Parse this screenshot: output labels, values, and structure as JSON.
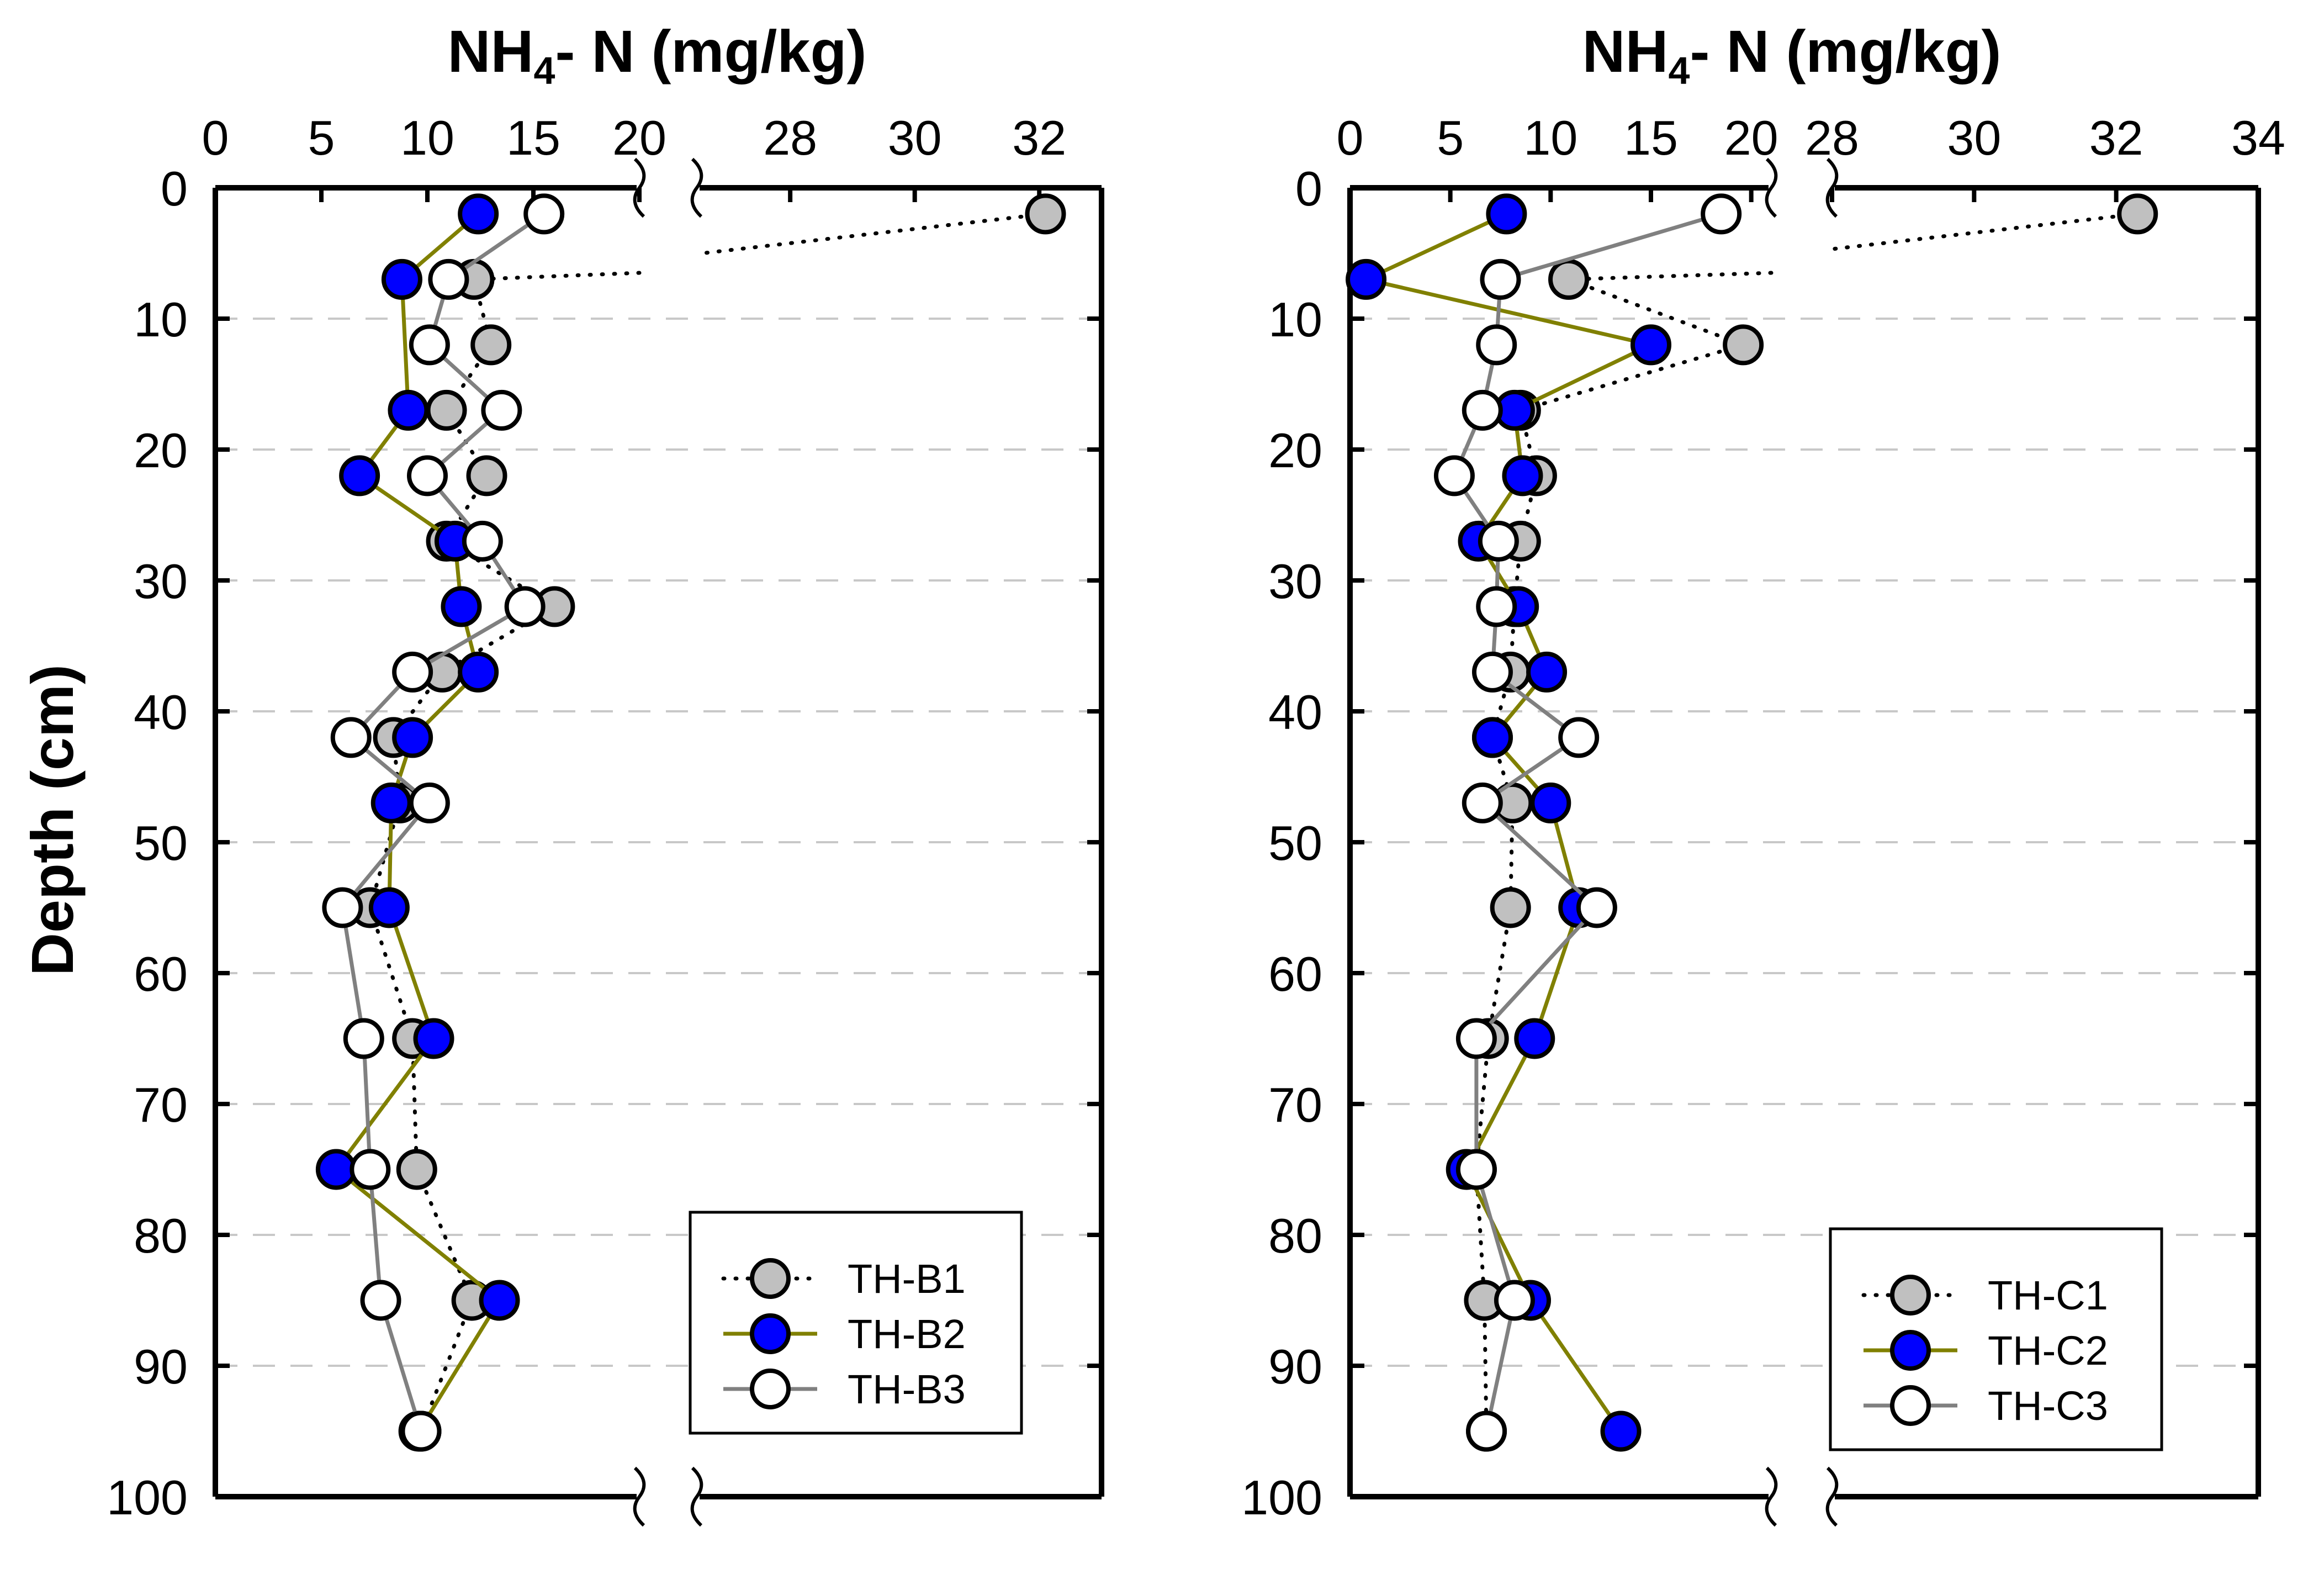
{
  "chart_data": [
    {
      "type": "scatter",
      "title_main": "NH",
      "title_sub": "4",
      "title_rest": "- N (mg/kg)",
      "ylabel": "Depth (cm)",
      "ylim": [
        0,
        100
      ],
      "y_ticks": [
        "0",
        "10",
        "20",
        "30",
        "40",
        "50",
        "60",
        "70",
        "80",
        "90",
        "100"
      ],
      "x_broken_axis": true,
      "xlim_left": [
        0,
        20
      ],
      "xlim_right": [
        26.5,
        33
      ],
      "x_ticks_left": [
        "0",
        "5",
        "10",
        "15",
        "20"
      ],
      "x_ticks_right": [
        "28",
        "30",
        "32"
      ],
      "grid": "horizontal dashed",
      "legend_position": "bottom-right",
      "series": [
        {
          "name": "TH-B1",
          "style": "dotted",
          "line_color": "#000000",
          "marker_fill": "#c0c0c0",
          "depth": [
            2,
            7,
            12,
            17,
            22,
            27,
            32,
            37,
            42,
            47,
            55,
            65,
            75,
            85,
            95
          ],
          "value": [
            32.1,
            12.2,
            13.0,
            10.9,
            12.8,
            10.9,
            16.0,
            10.7,
            8.4,
            8.7,
            7.3,
            9.3,
            9.5,
            12.1,
            9.7
          ]
        },
        {
          "name": "TH-B2",
          "style": "solid",
          "line_color": "#808000",
          "marker_fill": "#0000ff",
          "depth": [
            2,
            7,
            17,
            22,
            27,
            32,
            37,
            42,
            47,
            55,
            65,
            75,
            85,
            95
          ],
          "value": [
            12.4,
            8.8,
            9.1,
            6.8,
            11.3,
            11.6,
            12.4,
            9.3,
            8.3,
            8.2,
            10.3,
            5.7,
            13.4,
            9.6
          ]
        },
        {
          "name": "TH-B3",
          "style": "solid",
          "line_color": "#808080",
          "marker_fill": "#ffffff",
          "depth": [
            2,
            7,
            12,
            17,
            22,
            27,
            32,
            37,
            42,
            47,
            55,
            65,
            75,
            85,
            95
          ],
          "value": [
            15.5,
            11.0,
            10.1,
            13.5,
            10.0,
            12.6,
            14.6,
            9.3,
            6.4,
            10.1,
            6.0,
            7.0,
            7.3,
            7.8,
            9.7
          ]
        }
      ]
    },
    {
      "type": "scatter",
      "title_main": "NH",
      "title_sub": "4",
      "title_rest": "- N (mg/kg)",
      "ylabel": "",
      "ylim": [
        0,
        100
      ],
      "y_ticks": [
        "0",
        "10",
        "20",
        "30",
        "40",
        "50",
        "60",
        "70",
        "80",
        "90",
        "100"
      ],
      "x_broken_axis": true,
      "xlim_left": [
        0,
        21
      ],
      "xlim_right": [
        28,
        34
      ],
      "x_ticks_left": [
        "0",
        "5",
        "10",
        "15",
        "20"
      ],
      "x_ticks_right": [
        "28",
        "30",
        "32",
        "34"
      ],
      "grid": "horizontal dashed",
      "legend_position": "bottom-right",
      "series": [
        {
          "name": "TH-C1",
          "style": "dotted",
          "line_color": "#000000",
          "marker_fill": "#c0c0c0",
          "depth": [
            2,
            7,
            12,
            17,
            22,
            27,
            32,
            37,
            42,
            47,
            55,
            65,
            75,
            85,
            95
          ],
          "value": [
            32.3,
            10.9,
            19.6,
            8.5,
            9.3,
            8.5,
            8.2,
            8.0,
            7.1,
            8.1,
            8.0,
            6.9,
            6.3,
            6.7,
            6.8
          ],
          "right_panel_points": [
            0
          ]
        },
        {
          "name": "TH-C2",
          "style": "solid",
          "line_color": "#808000",
          "marker_fill": "#0000ff",
          "depth": [
            2,
            7,
            12,
            17,
            22,
            27,
            32,
            37,
            42,
            47,
            55,
            65,
            75,
            85,
            95
          ],
          "value": [
            7.8,
            0.8,
            15.0,
            8.2,
            8.6,
            6.4,
            8.4,
            9.8,
            7.1,
            10.0,
            11.4,
            9.2,
            5.8,
            9.0,
            13.5
          ]
        },
        {
          "name": "TH-C3",
          "style": "solid",
          "line_color": "#808080",
          "marker_fill": "#ffffff",
          "depth": [
            2,
            7,
            12,
            17,
            22,
            27,
            32,
            37,
            42,
            47,
            55,
            65,
            75,
            85,
            95
          ],
          "value": [
            18.5,
            7.5,
            7.3,
            6.6,
            5.2,
            7.4,
            7.3,
            7.1,
            11.4,
            6.6,
            12.3,
            6.3,
            6.3,
            8.2,
            6.8
          ]
        }
      ]
    }
  ]
}
